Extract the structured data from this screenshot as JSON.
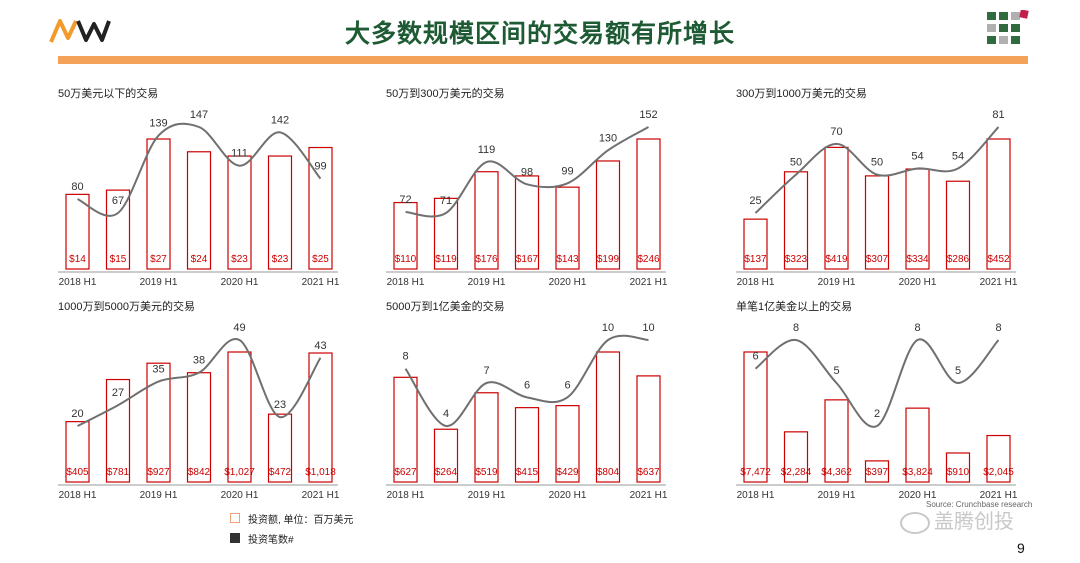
{
  "title": "大多数规模区间的交易额有所增长",
  "colors": {
    "accent": "#f4a259",
    "title": "#1e5b34",
    "bar": "#cc0000",
    "line": "#707070"
  },
  "x_labels": [
    "2018 H1",
    "2019 H1",
    "2020 H1",
    "2021 H1"
  ],
  "chart_data": [
    {
      "type": "bar",
      "title": "50万美元以下的交易",
      "bar_labels": [
        "$14",
        "$15",
        "$27",
        "$24",
        "$23",
        "$23",
        "$25"
      ],
      "bar_values": [
        14,
        15,
        27,
        24,
        23,
        23,
        25
      ],
      "line_values": [
        80,
        67,
        139,
        147,
        111,
        142,
        99
      ]
    },
    {
      "type": "bar",
      "title": "50万到300万美元的交易",
      "bar_labels": [
        "$110",
        "$119",
        "$176",
        "$167",
        "$143",
        "$199",
        "$246"
      ],
      "bar_values": [
        110,
        119,
        176,
        167,
        143,
        199,
        246
      ],
      "line_values": [
        72,
        71,
        119,
        98,
        99,
        130,
        152
      ]
    },
    {
      "type": "bar",
      "title": "300万到1000万美元的交易",
      "bar_labels": [
        "$137",
        "$323",
        "$419",
        "$307",
        "$334",
        "$286",
        "$452"
      ],
      "bar_values": [
        137,
        323,
        419,
        307,
        334,
        286,
        452
      ],
      "line_values": [
        25,
        50,
        70,
        50,
        54,
        54,
        81
      ]
    },
    {
      "type": "bar",
      "title": "1000万到5000万美元的交易",
      "bar_labels": [
        "$405",
        "$781",
        "$927",
        "$842",
        "$1,027",
        "$472",
        "$1,018"
      ],
      "bar_values": [
        405,
        781,
        927,
        842,
        1027,
        472,
        1018
      ],
      "line_values": [
        20,
        27,
        35,
        38,
        49,
        23,
        43
      ]
    },
    {
      "type": "bar",
      "title": "5000万到1亿美金的交易",
      "bar_labels": [
        "$627",
        "$264",
        "$519",
        "$415",
        "$429",
        "$804",
        "$637"
      ],
      "bar_values": [
        627,
        264,
        519,
        415,
        429,
        804,
        637
      ],
      "line_values": [
        8,
        4,
        7,
        6,
        6,
        10,
        10
      ]
    },
    {
      "type": "bar",
      "title": "单笔1亿美金以上的交易",
      "bar_labels": [
        "$7,472",
        "$2,284",
        "$4,362",
        "$397",
        "$3,824",
        "$910",
        "$2,045"
      ],
      "bar_values": [
        7472,
        2284,
        4362,
        397,
        3824,
        910,
        2045
      ],
      "line_values": [
        6,
        8,
        5,
        2,
        8,
        5,
        8
      ]
    }
  ],
  "legend": {
    "bar_label": "投资额, 单位：百万美元",
    "line_label": "投资笔数#"
  },
  "source": "Source: Crunchbase research",
  "watermark": "盖腾创投",
  "page_number": "9"
}
